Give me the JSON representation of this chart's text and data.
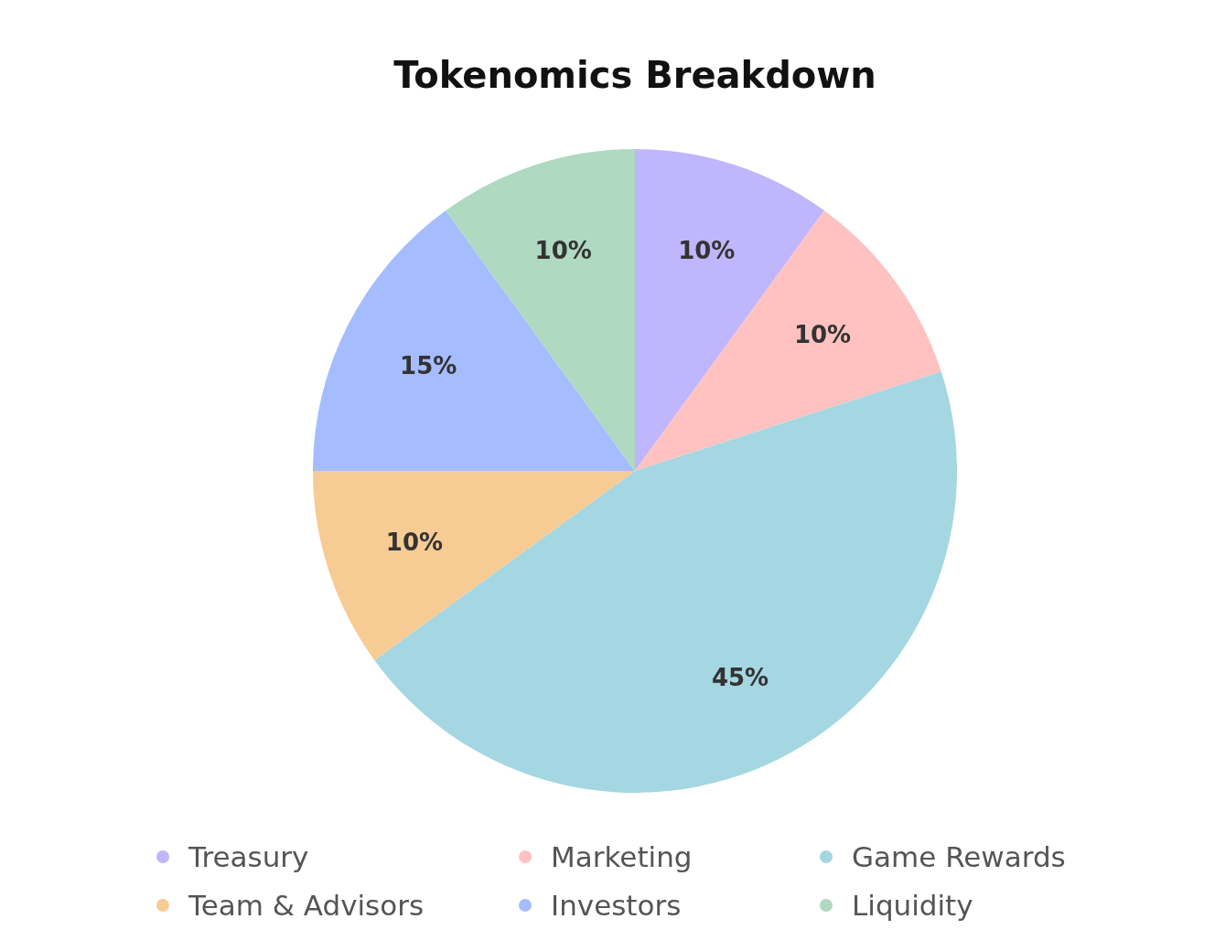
{
  "chart_data": {
    "type": "pie",
    "title": "Tokenomics Breakdown",
    "categories": [
      "Treasury",
      "Marketing",
      "Game Rewards",
      "Team & Advisors",
      "Investors",
      "Liquidity"
    ],
    "values": [
      10,
      10,
      45,
      10,
      15,
      10
    ],
    "colors": [
      "#c0b6fd",
      "#ffc2c0",
      "#a4d7e1",
      "#f7cb94",
      "#a5bdfe",
      "#afd9c0"
    ],
    "value_labels": [
      "10%",
      "10%",
      "45%",
      "10%",
      "15%",
      "10%"
    ],
    "legend": "bottom"
  }
}
